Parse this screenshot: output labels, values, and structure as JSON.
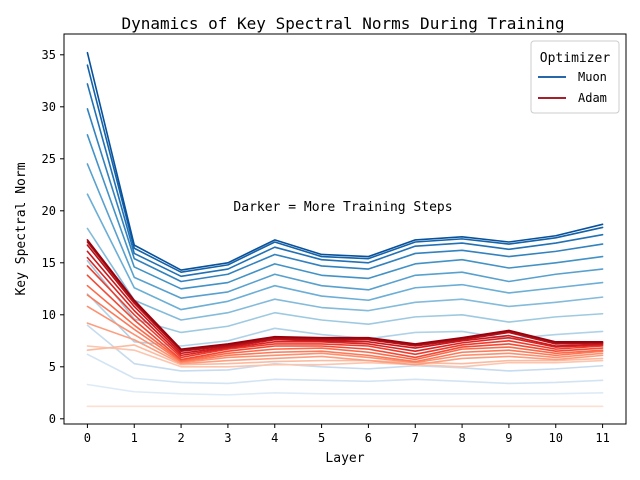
{
  "chart_data": {
    "type": "line",
    "title": "Dynamics of Key Spectral Norms During Training",
    "xlabel": "Layer",
    "ylabel": "Key Spectral Norm",
    "x": [
      0,
      1,
      2,
      3,
      4,
      5,
      6,
      7,
      8,
      9,
      10,
      11
    ],
    "xlim": [
      -0.5,
      11.5
    ],
    "ylim": [
      -0.5,
      37
    ],
    "yticks": [
      0,
      5,
      10,
      15,
      20,
      25,
      30,
      35
    ],
    "grid": false,
    "annotation": "Darker = More Training Steps",
    "legend": {
      "title": "Optimizer",
      "placement": "top-right",
      "entries": [
        {
          "label": "Muon",
          "color": "#08519c"
        },
        {
          "label": "Adam",
          "color": "#99000d"
        }
      ]
    },
    "muon_series": [
      {
        "color": "#f0f6fd",
        "values": [
          1.2,
          1.2,
          1.2,
          1.2,
          1.2,
          1.2,
          1.2,
          1.2,
          1.2,
          1.2,
          1.2,
          1.2
        ]
      },
      {
        "color": "#deebf7",
        "values": [
          3.3,
          2.6,
          2.4,
          2.3,
          2.5,
          2.4,
          2.4,
          2.4,
          2.4,
          2.4,
          2.4,
          2.5
        ]
      },
      {
        "color": "#d2e4f3",
        "values": [
          6.2,
          3.9,
          3.5,
          3.4,
          3.8,
          3.7,
          3.6,
          3.8,
          3.6,
          3.4,
          3.5,
          3.7
        ]
      },
      {
        "color": "#c6dbef",
        "values": [
          9.0,
          5.3,
          4.6,
          4.7,
          5.3,
          5.0,
          4.8,
          5.1,
          4.9,
          4.6,
          4.8,
          5.1
        ]
      },
      {
        "color": "#b0d2e8",
        "values": [
          12.0,
          7.4,
          7.0,
          7.5,
          8.7,
          8.1,
          7.7,
          8.3,
          8.4,
          7.7,
          8.1,
          8.4
        ]
      },
      {
        "color": "#9ecae1",
        "values": [
          15.2,
          9.6,
          8.3,
          8.9,
          10.2,
          9.5,
          9.1,
          9.8,
          10.0,
          9.3,
          9.8,
          10.1
        ]
      },
      {
        "color": "#84bbdb",
        "values": [
          18.3,
          11.4,
          9.5,
          10.2,
          11.5,
          10.7,
          10.4,
          11.2,
          11.5,
          10.8,
          11.2,
          11.7
        ]
      },
      {
        "color": "#6baed6",
        "values": [
          21.6,
          12.6,
          10.5,
          11.3,
          12.8,
          11.8,
          11.4,
          12.6,
          12.9,
          12.1,
          12.6,
          13.1
        ]
      },
      {
        "color": "#58a0ce",
        "values": [
          24.5,
          13.6,
          11.6,
          12.2,
          13.9,
          12.8,
          12.4,
          13.8,
          14.1,
          13.2,
          13.9,
          14.4
        ]
      },
      {
        "color": "#4292c6",
        "values": [
          27.3,
          14.6,
          12.5,
          13.1,
          14.9,
          13.8,
          13.5,
          14.9,
          15.3,
          14.5,
          15.0,
          15.6
        ]
      },
      {
        "color": "#3282be",
        "values": [
          29.8,
          15.4,
          13.2,
          13.9,
          15.8,
          14.7,
          14.4,
          15.9,
          16.2,
          15.6,
          16.1,
          16.8
        ]
      },
      {
        "color": "#2171b5",
        "values": [
          32.2,
          15.9,
          13.7,
          14.4,
          16.5,
          15.3,
          15.0,
          16.6,
          16.9,
          16.3,
          16.9,
          17.7
        ]
      },
      {
        "color": "#1462a8",
        "values": [
          34.0,
          16.4,
          14.1,
          14.8,
          17.0,
          15.6,
          15.4,
          17.0,
          17.3,
          16.8,
          17.4,
          18.4
        ]
      },
      {
        "color": "#08519c",
        "values": [
          35.2,
          16.7,
          14.3,
          15.0,
          17.2,
          15.8,
          15.6,
          17.2,
          17.5,
          17.0,
          17.6,
          18.7
        ]
      }
    ],
    "adam_series": [
      {
        "color": "#fee0d2",
        "values": [
          1.2,
          1.2,
          1.2,
          1.2,
          1.2,
          1.2,
          1.2,
          1.2,
          1.2,
          1.2,
          1.2,
          1.2
        ]
      },
      {
        "color": "#fcc5ae",
        "values": [
          7.0,
          6.6,
          5.0,
          5.0,
          5.2,
          5.2,
          5.4,
          5.2,
          5.0,
          5.4,
          5.4,
          5.6
        ]
      },
      {
        "color": "#fcbba1",
        "values": [
          6.6,
          7.1,
          5.2,
          5.3,
          5.5,
          5.6,
          5.6,
          5.4,
          5.3,
          5.6,
          5.6,
          5.8
        ]
      },
      {
        "color": "#fc9f81",
        "values": [
          9.2,
          7.6,
          5.3,
          5.6,
          5.8,
          6.0,
          5.6,
          5.2,
          5.8,
          6.0,
          5.7,
          6.1
        ]
      },
      {
        "color": "#fc9272",
        "values": [
          10.8,
          8.1,
          5.4,
          5.9,
          6.1,
          6.3,
          5.9,
          5.4,
          6.1,
          6.3,
          5.9,
          6.3
        ]
      },
      {
        "color": "#fb7a5a",
        "values": [
          11.9,
          8.6,
          5.5,
          6.1,
          6.4,
          6.5,
          6.1,
          5.5,
          6.4,
          6.6,
          6.1,
          6.5
        ]
      },
      {
        "color": "#fb6a4a",
        "values": [
          12.8,
          9.0,
          5.6,
          6.3,
          6.7,
          6.8,
          6.4,
          5.7,
          6.7,
          6.9,
          6.3,
          6.6
        ]
      },
      {
        "color": "#f24a35",
        "values": [
          13.8,
          9.5,
          5.7,
          6.5,
          7.0,
          7.0,
          6.7,
          5.9,
          6.9,
          7.2,
          6.5,
          6.8
        ]
      },
      {
        "color": "#ef3b2c",
        "values": [
          14.7,
          10.0,
          5.9,
          6.7,
          7.2,
          7.2,
          7.0,
          6.2,
          7.1,
          7.5,
          6.7,
          7.0
        ]
      },
      {
        "color": "#d92523",
        "values": [
          15.5,
          10.4,
          6.1,
          6.8,
          7.4,
          7.4,
          7.2,
          6.5,
          7.3,
          7.8,
          6.9,
          7.1
        ]
      },
      {
        "color": "#cb181d",
        "values": [
          16.1,
          10.8,
          6.3,
          6.9,
          7.6,
          7.5,
          7.4,
          6.8,
          7.5,
          8.0,
          7.0,
          7.2
        ]
      },
      {
        "color": "#b61218",
        "values": [
          16.7,
          11.1,
          6.5,
          7.0,
          7.7,
          7.6,
          7.6,
          7.0,
          7.6,
          8.3,
          7.2,
          7.3
        ]
      },
      {
        "color": "#a50f15",
        "values": [
          17.0,
          11.3,
          6.6,
          7.1,
          7.8,
          7.7,
          7.7,
          7.1,
          7.7,
          8.4,
          7.3,
          7.3
        ]
      },
      {
        "color": "#99000d",
        "values": [
          17.2,
          11.4,
          6.7,
          7.2,
          7.9,
          7.8,
          7.8,
          7.2,
          7.8,
          8.5,
          7.4,
          7.4
        ]
      }
    ]
  }
}
